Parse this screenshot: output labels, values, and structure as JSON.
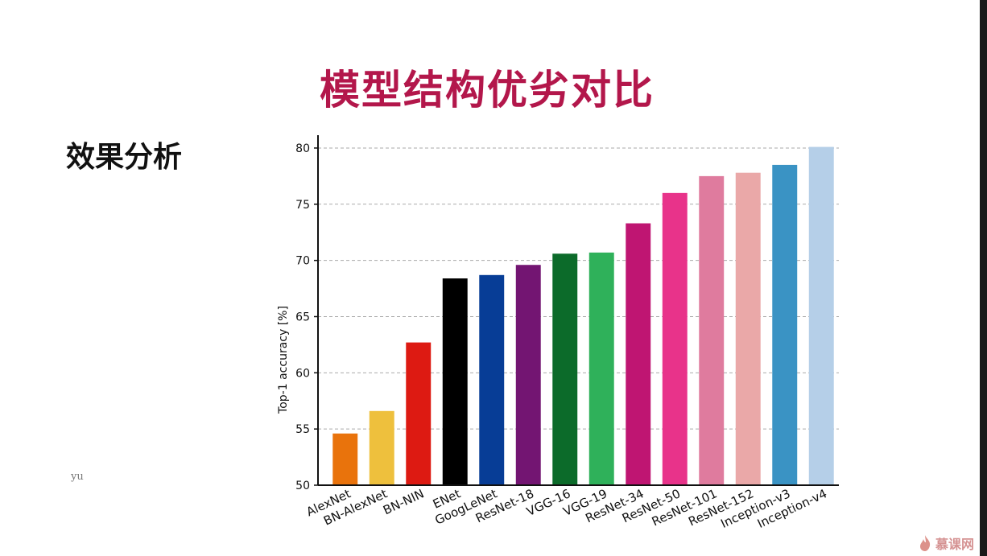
{
  "slide": {
    "title": "模型结构优劣对比",
    "section_label": "效果分析",
    "author": "yu",
    "watermark": "慕课网"
  },
  "colors": {
    "title": "#b3174b",
    "grid": "#aaaaaa",
    "axis": "#111111"
  },
  "chart_data": {
    "type": "bar",
    "title": "",
    "xlabel": "",
    "ylabel": "Top-1 accuracy [%]",
    "ylim": [
      50,
      81
    ],
    "yticks": [
      50,
      55,
      60,
      65,
      70,
      75,
      80
    ],
    "grid": "horizontal-dashed",
    "categories": [
      "AlexNet",
      "BN-AlexNet",
      "BN-NIN",
      "ENet",
      "GoogLeNet",
      "ResNet-18",
      "VGG-16",
      "VGG-19",
      "ResNet-34",
      "ResNet-50",
      "ResNet-101",
      "ResNet-152",
      "Inception-v3",
      "Inception-v4"
    ],
    "values": [
      54.6,
      56.6,
      62.7,
      68.4,
      68.7,
      69.6,
      70.6,
      70.7,
      73.3,
      76.0,
      77.5,
      77.8,
      78.5,
      80.1
    ],
    "bar_colors": [
      "#e9730c",
      "#eec03d",
      "#dd1a12",
      "#000000",
      "#073d96",
      "#731572",
      "#0c6b2a",
      "#2fb15a",
      "#bf1572",
      "#e8338a",
      "#df7b9e",
      "#eaa8a8",
      "#3a93c4",
      "#b5cfe8"
    ]
  }
}
